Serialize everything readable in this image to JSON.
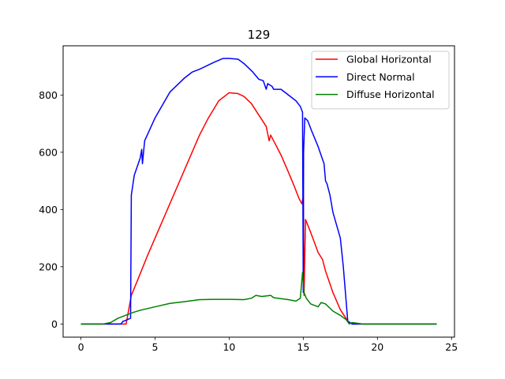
{
  "chart_data": {
    "type": "line",
    "title": "129",
    "xlabel": "",
    "ylabel": "",
    "xlim": [
      -1.2,
      25.2
    ],
    "ylim": [
      -46,
      972
    ],
    "xticks": [
      0,
      5,
      10,
      15,
      20,
      25
    ],
    "yticks": [
      0,
      200,
      400,
      600,
      800
    ],
    "grid": false,
    "legend_position": "top-right",
    "series": [
      {
        "name": "Global Horizontal",
        "color": "#ff0000",
        "points": [
          [
            0,
            0
          ],
          [
            1,
            0
          ],
          [
            2,
            0
          ],
          [
            2.8,
            0
          ],
          [
            3.05,
            0
          ],
          [
            3.4,
            100
          ],
          [
            3.8,
            150
          ],
          [
            4.5,
            240
          ],
          [
            5,
            300
          ],
          [
            6,
            420
          ],
          [
            7,
            540
          ],
          [
            8,
            660
          ],
          [
            8.6,
            720
          ],
          [
            9.3,
            780
          ],
          [
            10,
            808
          ],
          [
            10.6,
            805
          ],
          [
            11,
            795
          ],
          [
            11.5,
            770
          ],
          [
            12,
            730
          ],
          [
            12.5,
            690
          ],
          [
            12.7,
            640
          ],
          [
            12.8,
            660
          ],
          [
            13,
            640
          ],
          [
            13.5,
            590
          ],
          [
            14,
            530
          ],
          [
            14.4,
            480
          ],
          [
            14.7,
            440
          ],
          [
            14.9,
            420
          ],
          [
            15.0,
            445
          ],
          [
            15.05,
            100
          ],
          [
            15.15,
            365
          ],
          [
            15.5,
            320
          ],
          [
            16,
            250
          ],
          [
            16.3,
            225
          ],
          [
            16.5,
            185
          ],
          [
            17,
            110
          ],
          [
            17.5,
            50
          ],
          [
            18,
            10
          ],
          [
            18.3,
            0
          ],
          [
            19,
            0
          ],
          [
            20,
            0
          ],
          [
            22,
            0
          ],
          [
            24,
            0
          ]
        ]
      },
      {
        "name": "Direct Normal",
        "color": "#0000ff",
        "points": [
          [
            0,
            0
          ],
          [
            1,
            0
          ],
          [
            2,
            0
          ],
          [
            2.7,
            0
          ],
          [
            2.85,
            10
          ],
          [
            2.9,
            10
          ],
          [
            3.35,
            20
          ],
          [
            3.4,
            450
          ],
          [
            3.6,
            520
          ],
          [
            4,
            580
          ],
          [
            4.1,
            610
          ],
          [
            4.15,
            560
          ],
          [
            4.3,
            640
          ],
          [
            5,
            720
          ],
          [
            6,
            810
          ],
          [
            7,
            860
          ],
          [
            7.5,
            880
          ],
          [
            8,
            890
          ],
          [
            9,
            915
          ],
          [
            9.6,
            928
          ],
          [
            10,
            928
          ],
          [
            10.6,
            925
          ],
          [
            11,
            910
          ],
          [
            11.6,
            880
          ],
          [
            12,
            855
          ],
          [
            12.3,
            850
          ],
          [
            12.5,
            820
          ],
          [
            12.6,
            840
          ],
          [
            12.9,
            830
          ],
          [
            13,
            820
          ],
          [
            13.5,
            820
          ],
          [
            14,
            800
          ],
          [
            14.5,
            780
          ],
          [
            14.8,
            760
          ],
          [
            14.95,
            740
          ],
          [
            15.0,
            110
          ],
          [
            15.02,
            600
          ],
          [
            15.1,
            720
          ],
          [
            15.3,
            710
          ],
          [
            15.6,
            670
          ],
          [
            16,
            620
          ],
          [
            16.4,
            560
          ],
          [
            16.5,
            500
          ],
          [
            16.6,
            490
          ],
          [
            16.8,
            450
          ],
          [
            17,
            390
          ],
          [
            17.5,
            300
          ],
          [
            17.7,
            200
          ],
          [
            18,
            10
          ],
          [
            18.3,
            0
          ],
          [
            19,
            0
          ],
          [
            20,
            0
          ],
          [
            22,
            0
          ],
          [
            24,
            0
          ]
        ]
      },
      {
        "name": "Diffuse Horizontal",
        "color": "#008000",
        "points": [
          [
            0,
            0
          ],
          [
            1,
            0
          ],
          [
            1.5,
            0
          ],
          [
            2,
            5
          ],
          [
            2.5,
            20
          ],
          [
            3,
            30
          ],
          [
            3.5,
            40
          ],
          [
            4,
            48
          ],
          [
            5,
            60
          ],
          [
            6,
            72
          ],
          [
            7,
            78
          ],
          [
            8,
            85
          ],
          [
            9,
            86
          ],
          [
            10,
            86
          ],
          [
            11,
            85
          ],
          [
            11.5,
            90
          ],
          [
            11.8,
            100
          ],
          [
            12.2,
            96
          ],
          [
            12.8,
            100
          ],
          [
            13,
            92
          ],
          [
            14,
            85
          ],
          [
            14.5,
            80
          ],
          [
            14.8,
            90
          ],
          [
            14.95,
            180
          ],
          [
            15.05,
            110
          ],
          [
            15.2,
            90
          ],
          [
            15.5,
            70
          ],
          [
            16,
            60
          ],
          [
            16.2,
            75
          ],
          [
            16.5,
            70
          ],
          [
            17,
            45
          ],
          [
            17.5,
            30
          ],
          [
            17.9,
            15
          ],
          [
            18.1,
            0
          ],
          [
            18.3,
            5
          ],
          [
            19,
            0
          ],
          [
            20,
            0
          ],
          [
            22,
            0
          ],
          [
            24,
            0
          ]
        ]
      }
    ]
  }
}
